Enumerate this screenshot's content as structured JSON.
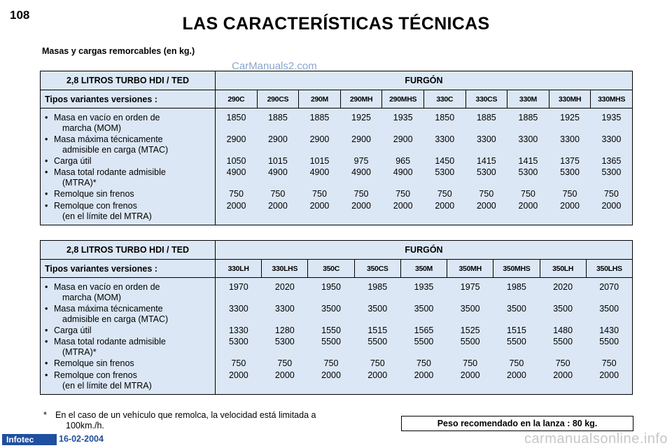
{
  "page": {
    "number": "108",
    "title": "LAS CARACTERÍSTICAS TÉCNICAS",
    "section_title": "Masas y cargas remorcables (en kg.)",
    "watermark_top": "CarManuals2.com",
    "footnote_star": "*",
    "footnote_line1": "En el caso de un vehículo que remolca, la velocidad está limitada a",
    "footnote_line2": "100km./h.",
    "lance_note": "Peso recomendado en la lanza : 80 kg.",
    "brand": "Infotec",
    "date": "16-02-2004",
    "watermark_bottom": "carmanualsonline.info"
  },
  "tables": [
    {
      "engine": "2,8 LITROS TURBO HDI / TED",
      "body_type": "FURGÓN",
      "types_label": "Tipos variantes versiones :",
      "variants": [
        "290C",
        "290CS",
        "290M",
        "290MH",
        "290MHS",
        "330C",
        "330CS",
        "330M",
        "330MH",
        "330MHS"
      ],
      "rows": [
        {
          "label1": "Masa en vacío en orden de",
          "label2": "marcha (MOM)",
          "values": [
            "1850",
            "1885",
            "1885",
            "1925",
            "1935",
            "1850",
            "1885",
            "1885",
            "1925",
            "1935"
          ]
        },
        {
          "label1": "Masa máxima técnicamente",
          "label2": "admisible en carga (MTAC)",
          "values": [
            "2900",
            "2900",
            "2900",
            "2900",
            "2900",
            "3300",
            "3300",
            "3300",
            "3300",
            "3300"
          ]
        },
        {
          "label1": "Carga útil",
          "label2": "",
          "values": [
            "1050",
            "1015",
            "1015",
            "975",
            "965",
            "1450",
            "1415",
            "1415",
            "1375",
            "1365"
          ]
        },
        {
          "label1": "Masa total rodante admisible",
          "label2": "(MTRA)*",
          "values": [
            "4900",
            "4900",
            "4900",
            "4900",
            "4900",
            "5300",
            "5300",
            "5300",
            "5300",
            "5300"
          ]
        },
        {
          "label1": "Remolque sin frenos",
          "label2": "",
          "values": [
            "750",
            "750",
            "750",
            "750",
            "750",
            "750",
            "750",
            "750",
            "750",
            "750"
          ]
        },
        {
          "label1": "Remolque con frenos",
          "label2": "(en el límite del MTRA)",
          "values": [
            "2000",
            "2000",
            "2000",
            "2000",
            "2000",
            "2000",
            "2000",
            "2000",
            "2000",
            "2000"
          ]
        }
      ]
    },
    {
      "engine": "2,8 LITROS TURBO HDI / TED",
      "body_type": "FURGÓN",
      "types_label": "Tipos variantes versiones :",
      "variants": [
        "330LH",
        "330LHS",
        "350C",
        "350CS",
        "350M",
        "350MH",
        "350MHS",
        "350LH",
        "350LHS"
      ],
      "rows": [
        {
          "label1": "Masa en vacío en orden de",
          "label2": "marcha (MOM)",
          "values": [
            "1970",
            "2020",
            "1950",
            "1985",
            "1935",
            "1975",
            "1985",
            "2020",
            "2070"
          ]
        },
        {
          "label1": "Masa máxima técnicamente",
          "label2": "admisible en carga (MTAC)",
          "values": [
            "3300",
            "3300",
            "3500",
            "3500",
            "3500",
            "3500",
            "3500",
            "3500",
            "3500"
          ]
        },
        {
          "label1": "Carga útil",
          "label2": "",
          "values": [
            "1330",
            "1280",
            "1550",
            "1515",
            "1565",
            "1525",
            "1515",
            "1480",
            "1430"
          ]
        },
        {
          "label1": "Masa total rodante admisible",
          "label2": "(MTRA)*",
          "values": [
            "5300",
            "5300",
            "5500",
            "5500",
            "5500",
            "5500",
            "5500",
            "5500",
            "5500"
          ]
        },
        {
          "label1": "Remolque sin frenos",
          "label2": "",
          "values": [
            "750",
            "750",
            "750",
            "750",
            "750",
            "750",
            "750",
            "750",
            "750"
          ]
        },
        {
          "label1": "Remolque con frenos",
          "label2": "(en el límite del MTRA)",
          "values": [
            "2000",
            "2000",
            "2000",
            "2000",
            "2000",
            "2000",
            "2000",
            "2000",
            "2000"
          ]
        }
      ]
    }
  ]
}
